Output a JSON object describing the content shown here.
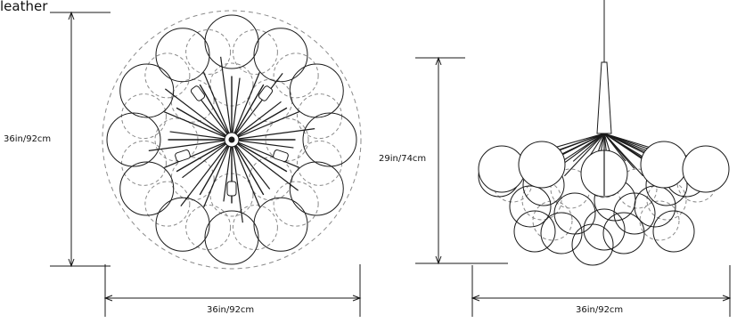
{
  "title": "leather",
  "top_view": {
    "height_label": "36in/92cm",
    "width_label": "36in/92cm"
  },
  "side_view": {
    "height_label": "29in/74cm",
    "width_label": "36in/92cm"
  },
  "colors": {
    "line": "#1a1a1a",
    "dashed": "#8a8a8a",
    "background": "#ffffff"
  }
}
